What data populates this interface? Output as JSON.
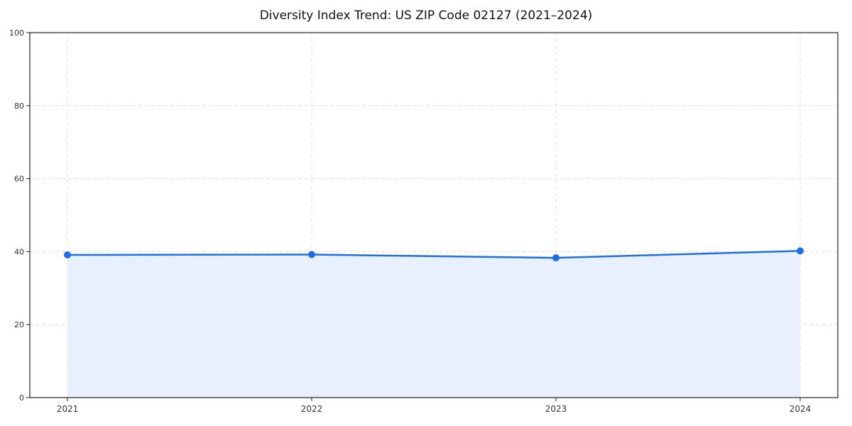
{
  "chart_data": {
    "type": "line",
    "title": "Diversity Index Trend: US ZIP Code 02127 (2021–2024)",
    "categories": [
      "2021",
      "2022",
      "2023",
      "2024"
    ],
    "series": [
      {
        "name": "Diversity Index",
        "values": [
          39.1,
          39.2,
          38.3,
          40.2
        ]
      }
    ],
    "xlabel": "",
    "ylabel": "",
    "ylim": [
      0,
      100
    ],
    "yticks": [
      0,
      20,
      40,
      60,
      80,
      100
    ],
    "grid": "dashed",
    "legend": "none",
    "area_fill": true,
    "colors": {
      "line": "#1f6fe0",
      "marker": "#1f6fe0",
      "area": "#e8f0fd",
      "grid": "#dddddd",
      "spine": "#222222",
      "tick_label": "#333333"
    }
  }
}
